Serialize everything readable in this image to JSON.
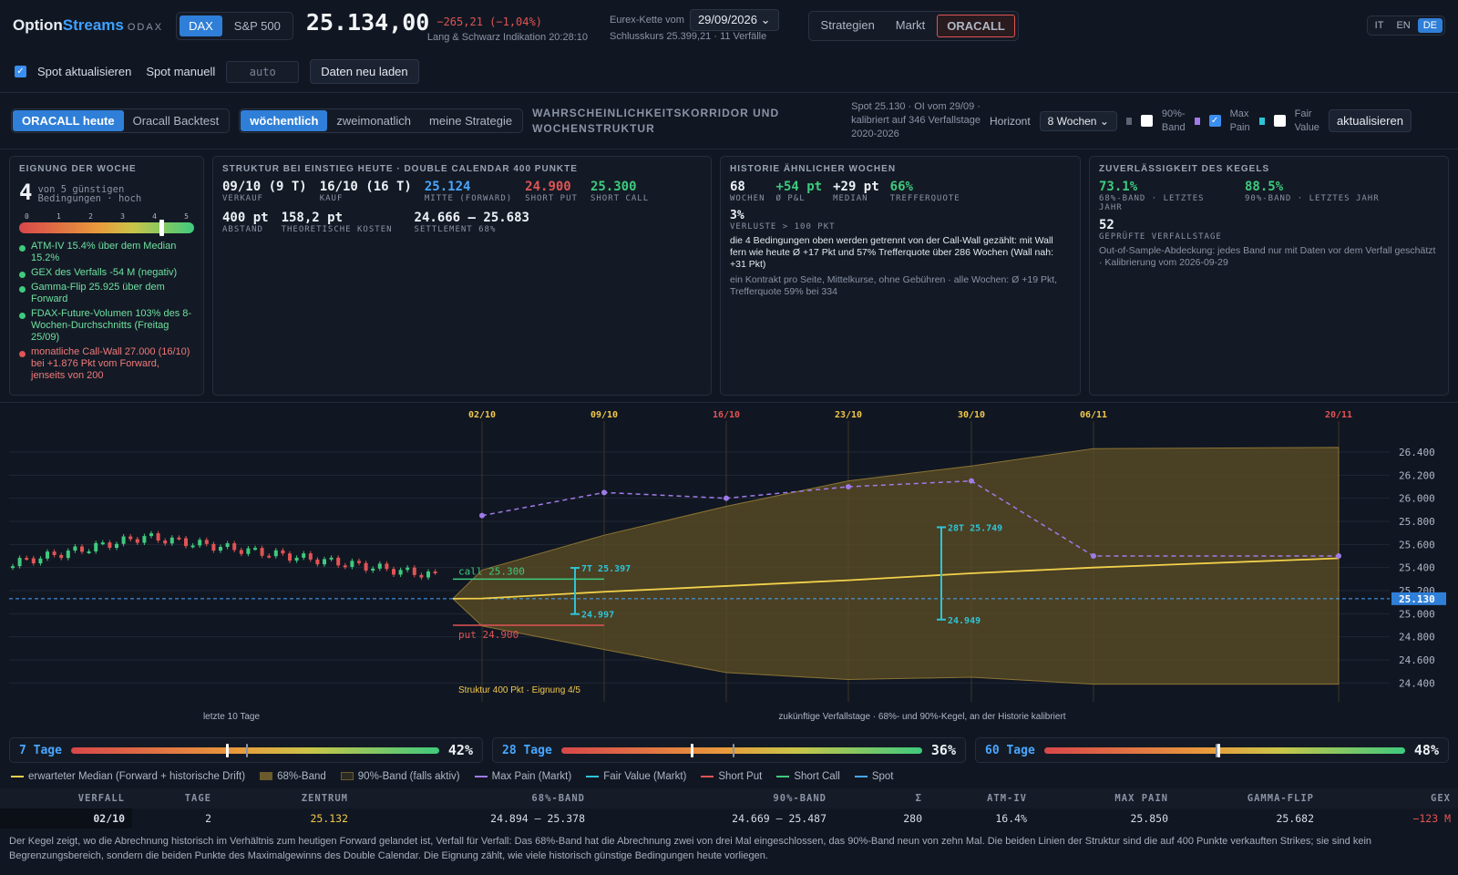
{
  "header": {
    "brand1": "Option",
    "brand2": "Streams",
    "brand3": "ODAX",
    "idx_dax": "DAX",
    "idx_sp": "S&P 500",
    "price": "25.134,00",
    "change": "−265,21 (−1,04%)",
    "price_source": "Lang & Schwarz Indikation 20:28:10",
    "chain_label": "Eurex-Kette vom",
    "chain_date": "29/09/2026",
    "close_info": "Schlusskurs 25.399,21 · 11 Verfälle",
    "nav": [
      "Strategien",
      "Markt",
      "ORACALL"
    ],
    "langs": [
      "IT",
      "EN",
      "DE"
    ]
  },
  "toolbar": {
    "spot_update": "Spot aktualisieren",
    "spot_manual": "Spot manuell",
    "spot_placeholder": "auto",
    "reload": "Daten neu laden"
  },
  "oracall": {
    "tab_today": "ORACALL heute",
    "tab_backtest": "Oracall Backtest",
    "freq": [
      "wöchentlich",
      "zweimonatlich",
      "meine Strategie"
    ],
    "title1": "WAHRSCHEINLICHKEITSKORRIDOR UND",
    "title2": "WOCHENSTRUKTUR",
    "info1": "Spot 25.130 · OI vom 29/09 ·",
    "info2": "kalibriert auf 346 Verfallstage",
    "info3": "2020-2026",
    "horizon_label": "Horizont",
    "horizon": "8 Wochen",
    "band90_1": "90%-",
    "band90_2": "Band",
    "maxpain_1": "Max",
    "maxpain_2": "Pain",
    "fair_1": "Fair",
    "fair_2": "Value",
    "refresh": "aktualisieren"
  },
  "suit": {
    "header": "EIGNUNG DER WOCHE",
    "score": "4",
    "of": "von 5 günstigen",
    "cond": "Bedingungen · hoch",
    "ticks": [
      "0",
      "1",
      "2",
      "3",
      "4",
      "5"
    ],
    "score_fraction": 0.8,
    "items": [
      {
        "t": "ATM-IV 15.4% über dem Median 15.2%",
        "ok": true
      },
      {
        "t": "GEX des Verfalls -54 M (negativ)",
        "ok": true
      },
      {
        "t": "Gamma-Flip 25.925 über dem Forward",
        "ok": true
      },
      {
        "t": "FDAX-Future-Volumen 103% des 8-Wochen-Durchschnitts (Freitag 25/09)",
        "ok": true
      },
      {
        "t": "monatliche Call-Wall 27.000 (16/10) bei +1.876 Pkt vom Forward, jenseits von 200",
        "ok": false
      }
    ]
  },
  "struct": {
    "header": "STRUKTUR BEI EINSTIEG HEUTE · DOUBLE CALENDAR 400 PUNKTE",
    "v1": "09/10 (9 T)",
    "l1": "VERKAUF",
    "v2": "16/10 (16 T)",
    "l2": "KAUF",
    "v3": "25.124",
    "l3": "MITTE (FORWARD)",
    "v4": "24.900",
    "l4": "SHORT PUT",
    "v5": "25.300",
    "l5": "SHORT CALL",
    "v6": "400 pt",
    "l6": "ABSTAND",
    "v7": "158,2 pt",
    "l7": "THEORETISCHE KOSTEN",
    "v8": "24.666 — 25.683",
    "l8": "SETTLEMENT 68%"
  },
  "hist": {
    "header": "HISTORIE ÄHNLICHER WOCHEN",
    "v1": "68",
    "l1": "WOCHEN",
    "v2": "+54 pt",
    "l2": "Ø P&L",
    "v3": "+29 pt",
    "l3": "MEDIAN",
    "v4": "66%",
    "l4": "TREFFERQUOTE",
    "v5": "3%",
    "l5": "VERLUSTE > 100 PKT",
    "note": "die 4 Bedingungen oben werden getrennt von der Call-Wall gezählt: mit Wall fern wie heute Ø +17 Pkt und 57% Trefferquote über 286 Wochen (Wall nah: +31 Pkt)",
    "note2": "ein Kontrakt pro Seite, Mittelkurse, ohne Gebühren · alle Wochen: Ø +19 Pkt, Trefferquote 59% bei 334"
  },
  "rel": {
    "header": "ZUVERLÄSSIGKEIT DES KEGELS",
    "v1": "73.1%",
    "l1": "68%-BAND · LETZTES JAHR",
    "v2": "88.5%",
    "l2": "90%-BAND · LETZTES JAHR",
    "v3": "52",
    "l3": "GEPRÜFTE VERFALLSTAGE",
    "note": "Out-of-Sample-Abdeckung: jedes Band nur mit Daten vor dem Verfall geschätzt · Kalibrierung vom 2026-09-29"
  },
  "chart_data": {
    "type": "line",
    "expiries": [
      "02/10",
      "09/10",
      "16/10",
      "23/10",
      "30/10",
      "06/11",
      "20/11"
    ],
    "expiry_colors": [
      "#f2c84b",
      "#f2c84b",
      "#e05454",
      "#f2c84b",
      "#f2c84b",
      "#f2c84b",
      "#e05454"
    ],
    "y_ticks": [
      "26.400",
      "26.200",
      "26.000",
      "25.800",
      "25.600",
      "25.400",
      "25.200",
      "25.000",
      "24.800",
      "24.600",
      "24.400"
    ],
    "ylim": [
      24300,
      26550
    ],
    "spot": 25130,
    "spot_label": "25.130",
    "median": [
      25132,
      25190,
      25240,
      25290,
      25350,
      25400,
      25480
    ],
    "band_lo": [
      24894,
      24690,
      24490,
      24430,
      24450,
      24390,
      24390
    ],
    "band_hi": [
      25378,
      25680,
      25930,
      26150,
      26280,
      26430,
      26440
    ],
    "max_pain": [
      25850,
      26050,
      26000,
      26100,
      26150,
      25500,
      25500
    ],
    "call_label": "call 25.300",
    "call": 25300,
    "put_label": "put 24.900",
    "put": 24900,
    "fv": [
      {
        "label_top": "7T 25.397",
        "label_bot": "24.997",
        "top": 25397,
        "bot": 24997
      },
      {
        "label_top": "28T 25.749",
        "label_bot": "24.949",
        "top": 25749,
        "bot": 24949
      }
    ],
    "struct_label": "Struktur 400 Pkt · Eignung 4/5",
    "left_label": "letzte 10 Tage",
    "right_label": "zukünftige Verfallstage · 68%- und 90%-Kegel, an der Historie kalibriert"
  },
  "gauges": [
    {
      "label": "7 Tage",
      "value": "42%",
      "frac": 0.42
    },
    {
      "label": "28 Tage",
      "value": "36%",
      "frac": 0.36
    },
    {
      "label": "60 Tage",
      "value": "48%",
      "frac": 0.48
    }
  ],
  "legend": [
    "erwarteter Median (Forward + historische Drift)",
    "68%-Band",
    "90%-Band (falls aktiv)",
    "Max Pain (Markt)",
    "Fair Value (Markt)",
    "Short Put",
    "Short Call",
    "Spot"
  ],
  "table": {
    "head": [
      "VERFALL",
      "TAGE",
      "ZENTRUM",
      "68%-BAND",
      "90%-BAND",
      "Σ",
      "ATM-IV",
      "MAX PAIN",
      "GAMMA-FLIP",
      "GEX"
    ],
    "row": [
      "02/10",
      "2",
      "25.132",
      "24.894 — 25.378",
      "24.669 — 25.487",
      "280",
      "16.4%",
      "25.850",
      "25.682",
      "−123 M"
    ]
  },
  "footer": "Der Kegel zeigt, wo die Abrechnung historisch im Verhältnis zum heutigen Forward gelandet ist, Verfall für Verfall: Das 68%-Band hat die Abrechnung zwei von drei Mal eingeschlossen, das 90%-Band neun von zehn Mal. Die beiden Linien der Struktur sind die auf 400 Punkte verkauften Strikes; sie sind kein Begrenzungsbereich, sondern die beiden Punkte des Maximalgewinns des Double Calendar. Die Eignung zählt, wie viele historisch günstige Bedingungen heute vorliegen."
}
